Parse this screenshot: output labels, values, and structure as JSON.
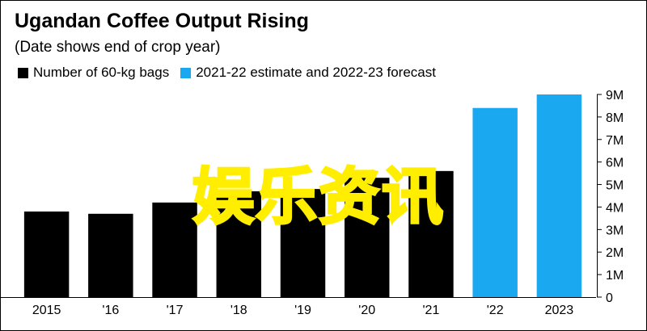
{
  "title": "Ugandan Coffee Output Rising",
  "subtitle": "(Date shows end of crop year)",
  "legend": [
    {
      "label": "Number of 60-kg bags",
      "color": "#000000"
    },
    {
      "label": "2021-22 estimate and 2022-23 forecast",
      "color": "#1aa8f0"
    }
  ],
  "overlay_text": "娱乐资讯",
  "chart_data": {
    "type": "bar",
    "categories": [
      "2015",
      "'16",
      "'17",
      "'18",
      "'19",
      "'20",
      "'21",
      "'22",
      "2023"
    ],
    "values": [
      3.8,
      3.7,
      4.2,
      4.7,
      4.8,
      5.3,
      5.6,
      8.4,
      9.0
    ],
    "bar_colors": [
      "#000000",
      "#000000",
      "#000000",
      "#000000",
      "#000000",
      "#000000",
      "#000000",
      "#1aa8f0",
      "#1aa8f0"
    ],
    "ylim": [
      0,
      9
    ],
    "y_ticks": [
      {
        "value": 0,
        "label": "0"
      },
      {
        "value": 1,
        "label": "1M"
      },
      {
        "value": 2,
        "label": "2M"
      },
      {
        "value": 3,
        "label": "3M"
      },
      {
        "value": 4,
        "label": "4M"
      },
      {
        "value": 5,
        "label": "5M"
      },
      {
        "value": 6,
        "label": "6M"
      },
      {
        "value": 7,
        "label": "7M"
      },
      {
        "value": 8,
        "label": "8M"
      },
      {
        "value": 9,
        "label": "9M"
      }
    ],
    "y_axis_side": "right",
    "grid": false,
    "legend_position": "top-left"
  }
}
